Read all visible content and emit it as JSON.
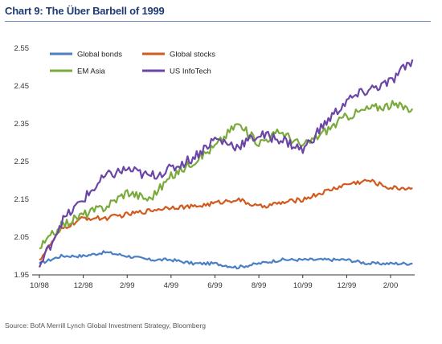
{
  "title": "Chart 9: The Über Barbell of 1999",
  "source": "Source: BofA Merrill Lynch Global Investment Strategy, Bloomberg",
  "chart_data": {
    "type": "line",
    "x_ticks": [
      "10/98",
      "12/98",
      "2/99",
      "4/99",
      "6/99",
      "8/99",
      "10/99",
      "12/99",
      "2/00"
    ],
    "ylim": [
      1.95,
      2.55
    ],
    "y_ticks": [
      "1.95",
      "2.05",
      "2.15",
      "2.25",
      "2.35",
      "2.45",
      "2.55"
    ],
    "grid": false,
    "legend_position": "top-left",
    "series": [
      {
        "name": "Global bonds",
        "color": "#4a7fc4",
        "x": [
          "10/98",
          "11/98",
          "12/98",
          "1/99",
          "2/99",
          "3/99",
          "4/99",
          "5/99",
          "6/99",
          "7/99",
          "8/99",
          "9/99",
          "10/99",
          "11/99",
          "12/99",
          "1/00",
          "2/00",
          "3/00"
        ],
        "values": [
          1.98,
          2.0,
          2.0,
          2.01,
          2.0,
          1.99,
          1.99,
          1.98,
          1.98,
          1.97,
          1.98,
          1.99,
          1.99,
          1.99,
          1.99,
          1.98,
          1.98,
          1.98
        ]
      },
      {
        "name": "Global stocks",
        "color": "#d35a1e",
        "x": [
          "10/98",
          "11/98",
          "12/98",
          "1/99",
          "2/99",
          "3/99",
          "4/99",
          "5/99",
          "6/99",
          "7/99",
          "8/99",
          "9/99",
          "10/99",
          "11/99",
          "12/99",
          "1/00",
          "2/00",
          "3/00"
        ],
        "values": [
          1.99,
          2.07,
          2.1,
          2.1,
          2.11,
          2.12,
          2.13,
          2.13,
          2.14,
          2.15,
          2.13,
          2.14,
          2.15,
          2.17,
          2.19,
          2.2,
          2.18,
          2.18
        ]
      },
      {
        "name": "EM Asia",
        "color": "#7aaa3c",
        "x": [
          "10/98",
          "11/98",
          "12/98",
          "1/99",
          "2/99",
          "3/99",
          "4/99",
          "5/99",
          "6/99",
          "7/99",
          "8/99",
          "9/99",
          "10/99",
          "11/99",
          "12/99",
          "1/00",
          "2/00",
          "3/00"
        ],
        "values": [
          2.02,
          2.08,
          2.11,
          2.13,
          2.17,
          2.15,
          2.21,
          2.25,
          2.29,
          2.35,
          2.3,
          2.33,
          2.29,
          2.33,
          2.37,
          2.39,
          2.4,
          2.39
        ]
      },
      {
        "name": "US InfoTech",
        "color": "#6b46a6",
        "x": [
          "10/98",
          "11/98",
          "12/98",
          "1/99",
          "2/99",
          "3/99",
          "4/99",
          "5/99",
          "6/99",
          "7/99",
          "8/99",
          "9/99",
          "10/99",
          "11/99",
          "12/99",
          "1/00",
          "2/00",
          "3/00"
        ],
        "values": [
          1.97,
          2.09,
          2.15,
          2.21,
          2.23,
          2.21,
          2.23,
          2.26,
          2.31,
          2.29,
          2.32,
          2.31,
          2.28,
          2.35,
          2.41,
          2.44,
          2.46,
          2.52
        ]
      }
    ]
  }
}
